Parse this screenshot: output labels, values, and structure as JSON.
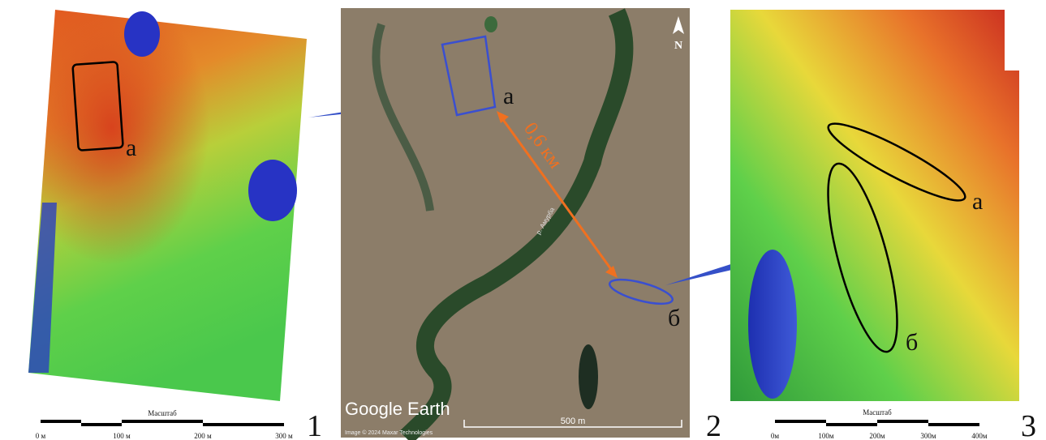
{
  "panels": [
    {
      "number": "1",
      "labels": [
        "а"
      ],
      "scale": {
        "title": "Масштаб",
        "ticks": [
          "0 м",
          "100 м",
          "200 м",
          "300 м"
        ]
      }
    },
    {
      "number": "2",
      "labels": [
        "а",
        "б"
      ],
      "distance": "0,6 км",
      "river": "р. Амурба",
      "brand": "Google Earth",
      "credit": "Image © 2024 Maxar Technologies",
      "scale": "500 m",
      "north": "N"
    },
    {
      "number": "3",
      "labels": [
        "а",
        "б"
      ],
      "scale": {
        "title": "Масштаб",
        "ticks": [
          "0м",
          "100м",
          "200м",
          "300м",
          "400м"
        ]
      }
    }
  ]
}
